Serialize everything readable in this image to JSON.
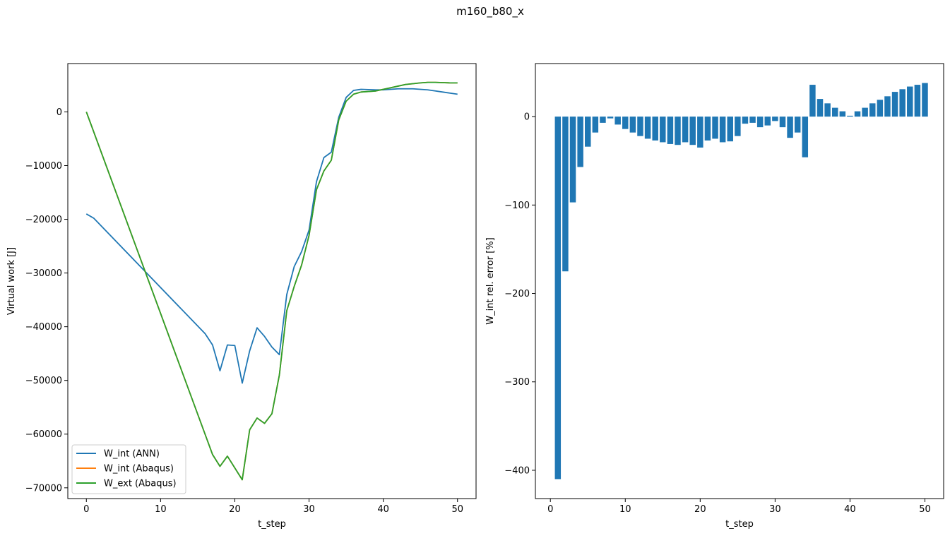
{
  "figure": {
    "suptitle": "m160_b80_x"
  },
  "chart_data": [
    {
      "type": "line",
      "xlabel": "t_step",
      "ylabel": "Virtual work [J]",
      "xlim": [
        -2.5,
        52.5
      ],
      "ylim": [
        -72000,
        9000
      ],
      "xticks": [
        0,
        10,
        20,
        30,
        40,
        50
      ],
      "yticks": [
        0,
        -10000,
        -20000,
        -30000,
        -40000,
        -50000,
        -60000,
        -70000
      ],
      "ytick_labels": [
        "0",
        "−10000",
        "−20000",
        "−30000",
        "−40000",
        "−50000",
        "−60000",
        "−70000"
      ],
      "legend_position": "lower-left",
      "series": [
        {
          "name": "W_int (ANN)",
          "color": "#1f77b4",
          "x": [
            0,
            1,
            16,
            17,
            18,
            19,
            20,
            21,
            22,
            23,
            24,
            25,
            26,
            27,
            28,
            29,
            30,
            31,
            32,
            33,
            34,
            35,
            36,
            37,
            38,
            39,
            40,
            41,
            42,
            43,
            44,
            45,
            46,
            47,
            48,
            49,
            50
          ],
          "y": [
            -19000,
            -19800,
            -41300,
            -43400,
            -48200,
            -43400,
            -43500,
            -50500,
            -44500,
            -40200,
            -41800,
            -43800,
            -45200,
            -34000,
            -28800,
            -26000,
            -22000,
            -13000,
            -8500,
            -7500,
            -1000,
            2700,
            4000,
            4200,
            4150,
            4100,
            4100,
            4200,
            4300,
            4300,
            4300,
            4200,
            4100,
            3900,
            3700,
            3500,
            3300
          ]
        },
        {
          "name": "W_int (Abaqus)",
          "color": "#ff7f0e",
          "x": [
            0,
            17,
            18,
            19,
            20,
            21,
            22,
            23,
            24,
            25,
            26,
            27,
            28,
            29,
            30,
            31,
            32,
            33,
            34,
            35,
            36,
            37,
            38,
            39,
            40,
            41,
            42,
            43,
            44,
            45,
            46,
            47,
            48,
            49,
            50
          ],
          "y": [
            0,
            -63800,
            -66000,
            -64100,
            -66300,
            -68500,
            -59200,
            -57000,
            -58000,
            -56200,
            -49000,
            -37000,
            -32500,
            -28500,
            -23000,
            -14500,
            -11000,
            -9000,
            -1500,
            2000,
            3300,
            3700,
            3800,
            3900,
            4200,
            4500,
            4800,
            5100,
            5250,
            5400,
            5500,
            5500,
            5450,
            5400,
            5400
          ]
        },
        {
          "name": "W_ext (Abaqus)",
          "color": "#2ca02c",
          "x": [
            0,
            17,
            18,
            19,
            20,
            21,
            22,
            23,
            24,
            25,
            26,
            27,
            28,
            29,
            30,
            31,
            32,
            33,
            34,
            35,
            36,
            37,
            38,
            39,
            40,
            41,
            42,
            43,
            44,
            45,
            46,
            47,
            48,
            49,
            50
          ],
          "y": [
            0,
            -63800,
            -66000,
            -64100,
            -66300,
            -68500,
            -59200,
            -57000,
            -58000,
            -56200,
            -49000,
            -37000,
            -32500,
            -28500,
            -23000,
            -14500,
            -11000,
            -9000,
            -1500,
            2000,
            3300,
            3700,
            3800,
            3900,
            4200,
            4500,
            4800,
            5100,
            5250,
            5400,
            5500,
            5500,
            5450,
            5400,
            5400
          ]
        }
      ]
    },
    {
      "type": "bar",
      "xlabel": "t_step",
      "ylabel": "W_int rel. error [%]",
      "xlim": [
        -2.0,
        52.5
      ],
      "ylim": [
        -432,
        60
      ],
      "xticks": [
        0,
        10,
        20,
        30,
        40,
        50
      ],
      "yticks": [
        0,
        -100,
        -200,
        -300,
        -400
      ],
      "ytick_labels": [
        "0",
        "−100",
        "−200",
        "−300",
        "−400"
      ],
      "color": "#1f77b4",
      "x": [
        1,
        2,
        3,
        4,
        5,
        6,
        7,
        8,
        9,
        10,
        11,
        12,
        13,
        14,
        15,
        16,
        17,
        18,
        19,
        20,
        21,
        22,
        23,
        24,
        25,
        26,
        27,
        28,
        29,
        30,
        31,
        32,
        33,
        34,
        35,
        36,
        37,
        38,
        39,
        40,
        41,
        42,
        43,
        44,
        45,
        46,
        47,
        48,
        49,
        50
      ],
      "values": [
        -410,
        -175,
        -97,
        -57,
        -34,
        -18,
        -7,
        -2,
        -9,
        -14,
        -18,
        -22,
        -25,
        -27,
        -29,
        -31,
        -32,
        -29,
        -32,
        -35,
        -27,
        -25,
        -29,
        -28,
        -22,
        -8,
        -7,
        -12,
        -10,
        -5,
        -12,
        -24,
        -18,
        -46,
        36,
        20,
        15,
        10,
        6,
        1,
        6,
        10,
        15,
        19,
        23,
        28,
        31,
        34,
        36,
        38
      ]
    }
  ]
}
